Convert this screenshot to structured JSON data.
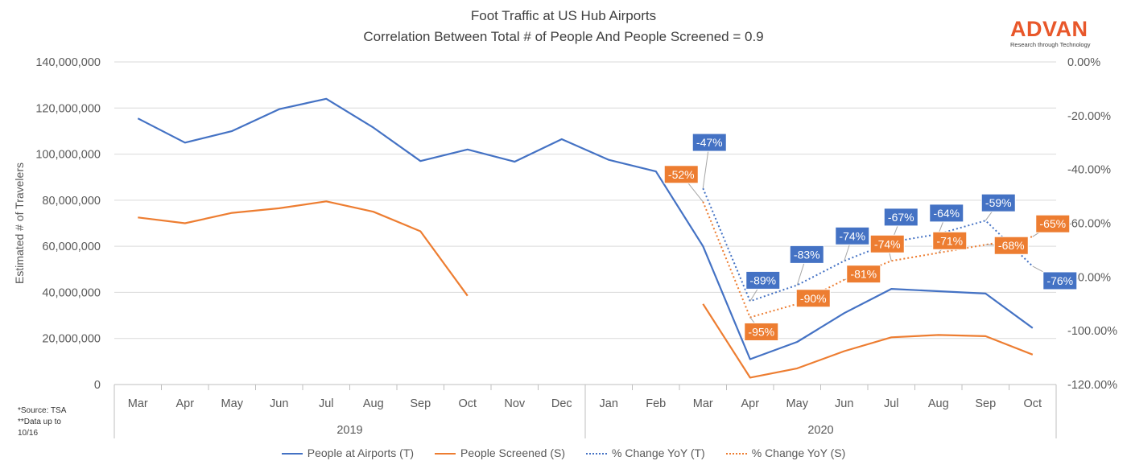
{
  "title": "Foot Traffic at US Hub Airports",
  "subtitle": "Correlation Between Total # of People And People Screened = 0.9",
  "brand": {
    "name": "ADVAN",
    "tagline": "Research through Technology"
  },
  "footnotes": [
    "*Source: TSA",
    "**Data up to",
    "10/16"
  ],
  "colors": {
    "blue": "#4472c4",
    "orange": "#ed7d31",
    "grid": "#d9d9d9",
    "text": "#595959"
  },
  "chart_data": {
    "type": "line",
    "ylabel": "Estimated # of Travelers",
    "ylim": [
      0,
      140000000
    ],
    "y2lim": [
      -120,
      0
    ],
    "y_ticks": [
      "0",
      "20,000,000",
      "40,000,000",
      "60,000,000",
      "80,000,000",
      "100,000,000",
      "120,000,000",
      "140,000,000"
    ],
    "y2_ticks": [
      "0.00%",
      "-20.00%",
      "-40.00%",
      "-60.00%",
      "-80.00%",
      "-100.00%",
      "-120.00%"
    ],
    "categories": [
      "Mar",
      "Apr",
      "May",
      "Jun",
      "Jul",
      "Aug",
      "Sep",
      "Oct",
      "Nov",
      "Dec",
      "Jan",
      "Feb",
      "Mar",
      "Apr",
      "May",
      "Jun",
      "Jul",
      "Aug",
      "Sep",
      "Oct"
    ],
    "groups": [
      {
        "label": "2019",
        "start": 0,
        "end": 9
      },
      {
        "label": "2020",
        "start": 10,
        "end": 19
      }
    ],
    "series": [
      {
        "name": "People at Airports (T)",
        "axis": "left",
        "style": "solid",
        "color": "#4472c4",
        "values": [
          115500000,
          105000000,
          110000000,
          119500000,
          124000000,
          111500000,
          97000000,
          102000000,
          96700000,
          106500000,
          97500000,
          92500000,
          60000000,
          11000000,
          18500000,
          31000000,
          41500000,
          40500000,
          39500000,
          24500000
        ]
      },
      {
        "name": "People Screened (S)",
        "axis": "left",
        "style": "solid",
        "color": "#ed7d31",
        "values": [
          72500000,
          70000000,
          74500000,
          76500000,
          79500000,
          75000000,
          66500000,
          38500000,
          null,
          null,
          null,
          null,
          35000000,
          3000000,
          7000000,
          14500000,
          20500000,
          21500000,
          21000000,
          13000000
        ]
      },
      {
        "name": "% Change YoY (T)",
        "axis": "right",
        "style": "dotted",
        "color": "#4472c4",
        "values": [
          null,
          null,
          null,
          null,
          null,
          null,
          null,
          null,
          null,
          null,
          null,
          null,
          -47,
          -89,
          -83,
          -74,
          -67,
          -64,
          -59,
          -76
        ],
        "labels": [
          "-47%",
          "-89%",
          "-83%",
          "-74%",
          "-67%",
          "-64%",
          "-59%",
          "-76%"
        ]
      },
      {
        "name": "% Change YoY (S)",
        "axis": "right",
        "style": "dotted",
        "color": "#ed7d31",
        "values": [
          null,
          null,
          null,
          null,
          null,
          null,
          null,
          null,
          null,
          null,
          null,
          null,
          -52,
          -95,
          -90,
          -81,
          -74,
          -71,
          -68,
          -65
        ],
        "labels": [
          "-52%",
          "-95%",
          "-90%",
          "-81%",
          "-74%",
          "-71%",
          "-68%",
          "-65%"
        ]
      }
    ],
    "legend_position": "bottom",
    "grid": true
  }
}
